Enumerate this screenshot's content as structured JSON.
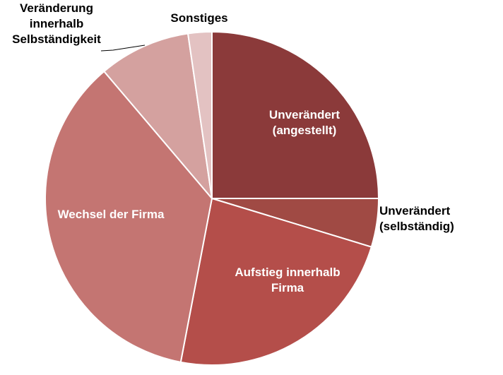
{
  "chart_data": {
    "type": "pie",
    "title": "",
    "start_angle_deg": 0,
    "direction": "clockwise",
    "slices": [
      {
        "label": "Unverändert\n(angestellt)",
        "value": 25.0,
        "color": "#8b3a3a",
        "label_pos": "inside"
      },
      {
        "label": "Unverändert\n(selbständig)",
        "value": 4.7,
        "color": "#a04a44",
        "label_pos": "outside"
      },
      {
        "label": "Aufstieg innerhalb\nFirma",
        "value": 23.3,
        "color": "#b44e4a",
        "label_pos": "inside"
      },
      {
        "label": "Wechsel der Firma",
        "value": 35.8,
        "color": "#c47572",
        "label_pos": "inside"
      },
      {
        "label": "Veränderung\ninnerhalb\nSelbständigkeit",
        "value": 8.9,
        "color": "#d4a19f",
        "label_pos": "outside"
      },
      {
        "label": "Sonstiges",
        "value": 2.3,
        "color": "#e3c2c2",
        "label_pos": "outside"
      }
    ]
  }
}
